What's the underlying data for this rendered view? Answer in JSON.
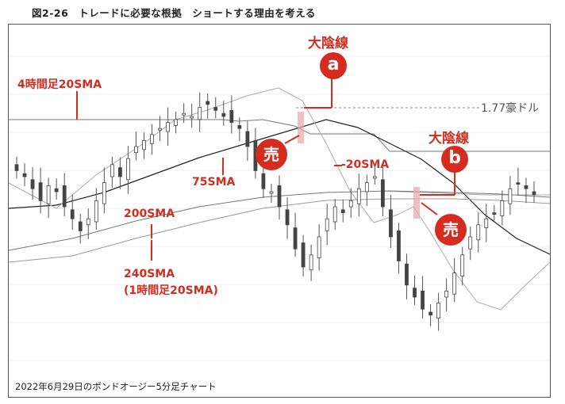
{
  "figure_title": "図2-26　トレードに必要な根拠　ショートする理由を考える",
  "caption": "2022年6月29日のポンドオージー5分足チャート",
  "colors": {
    "accent": "#d42c1e",
    "candle": "#444444",
    "ma_dark": "#222222",
    "ma_light": "#999999",
    "level": "#888888"
  },
  "annotations": {
    "big_bear_label": "大陰線",
    "badge_a": "a",
    "badge_b": "b",
    "sell": "売",
    "sma_4h": "4時間足20SMA",
    "sma_75": "75SMA",
    "sma_neg20": "-20SMA",
    "sma_200": "200SMA",
    "sma_240": "240SMA",
    "sma_240_note": "(1時間足20SMA)",
    "level_label": "1.77豪ドル"
  },
  "chart_data": {
    "type": "candlestick",
    "title": "",
    "xlabel": "",
    "ylabel": "",
    "horizontal_level": 1.77,
    "candles_close_trend": [
      0.62,
      0.6,
      0.56,
      0.52,
      0.57,
      0.55,
      0.5,
      0.46,
      0.42,
      0.46,
      0.52,
      0.58,
      0.64,
      0.6,
      0.66,
      0.7,
      0.72,
      0.74,
      0.76,
      0.78,
      0.79,
      0.81,
      0.8,
      0.83,
      0.84,
      0.82,
      0.8,
      0.78,
      0.76,
      0.7,
      0.62,
      0.56,
      0.55,
      0.5,
      0.44,
      0.36,
      0.3,
      0.34,
      0.4,
      0.46,
      0.5,
      0.48,
      0.52,
      0.56,
      0.58,
      0.6,
      0.5,
      0.4,
      0.32,
      0.24,
      0.2,
      0.16,
      0.14,
      0.18,
      0.22,
      0.28,
      0.34,
      0.4,
      0.44,
      0.46,
      0.48,
      0.52,
      0.56,
      0.58,
      0.56,
      0.54
    ]
  }
}
